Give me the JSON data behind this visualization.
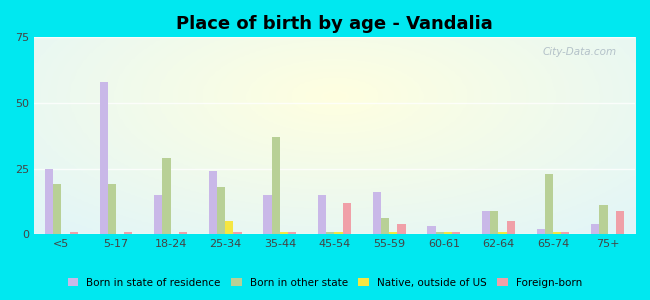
{
  "title": "Place of birth by age - Vandalia",
  "categories": [
    "<5",
    "5-17",
    "18-24",
    "25-34",
    "35-44",
    "45-54",
    "55-59",
    "60-61",
    "62-64",
    "65-74",
    "75+"
  ],
  "series": {
    "Born in state of residence": [
      25,
      58,
      15,
      24,
      15,
      15,
      16,
      3,
      9,
      2,
      4
    ],
    "Born in other state": [
      19,
      19,
      29,
      18,
      37,
      1,
      6,
      1,
      9,
      23,
      11
    ],
    "Native, outside of US": [
      0,
      0,
      0,
      5,
      1,
      1,
      1,
      1,
      1,
      1,
      0
    ],
    "Foreign-born": [
      1,
      1,
      1,
      1,
      1,
      12,
      4,
      1,
      5,
      1,
      9
    ]
  },
  "colors": {
    "Born in state of residence": "#c9b8e8",
    "Born in other state": "#b8d096",
    "Native, outside of US": "#f5e642",
    "Foreign-born": "#f0a0a8"
  },
  "ylim": [
    0,
    75
  ],
  "yticks": [
    0,
    25,
    50,
    75
  ],
  "outer_bg": "#00e8f0",
  "bar_width": 0.15,
  "legend_fontsize": 7.5,
  "title_fontsize": 13
}
